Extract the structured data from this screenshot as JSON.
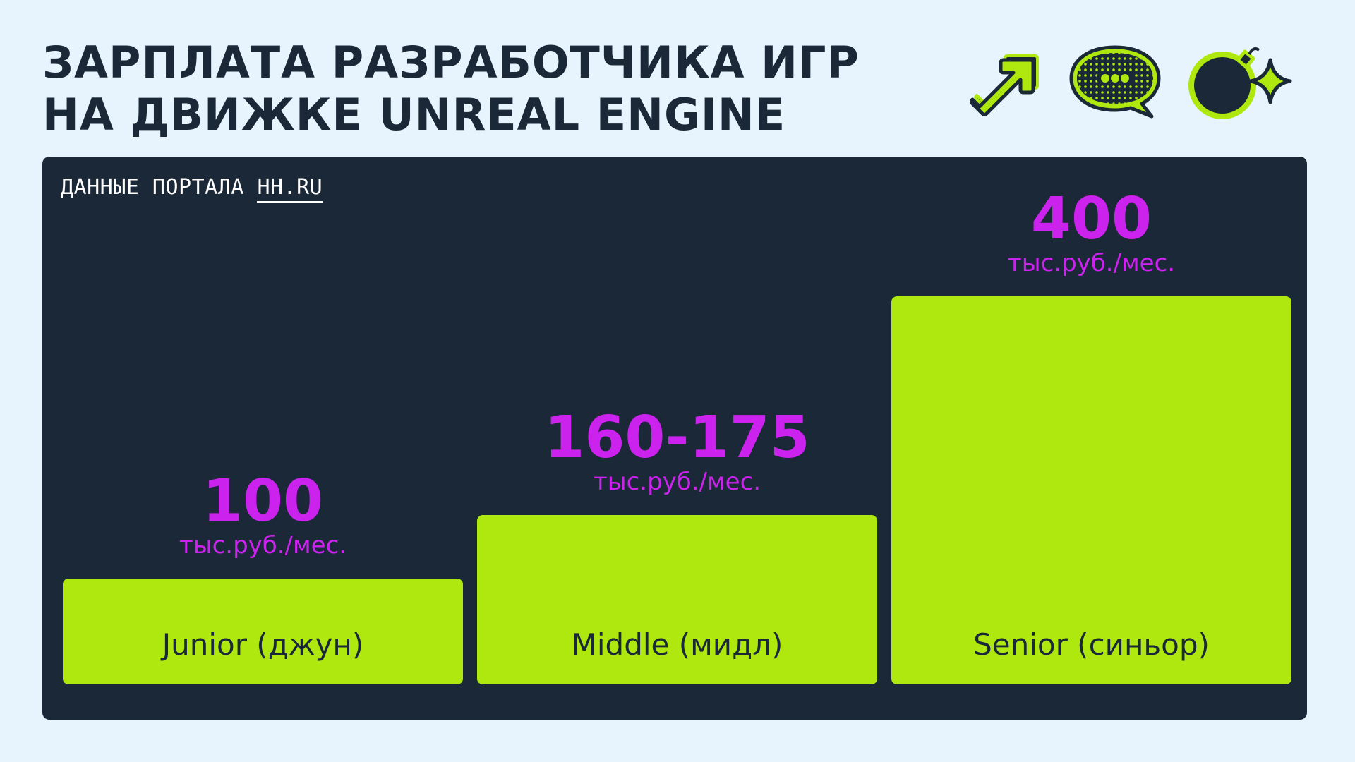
{
  "title": {
    "line1": "ЗАРПЛАТА РАЗРАБОТЧИКА ИГР",
    "line2": "НА ДВИЖКЕ UNREAL ENGINE"
  },
  "source": {
    "prefix": "ДАННЫЕ ПОРТАЛА",
    "link": "HH.RU"
  },
  "icons": [
    "arrow-icon",
    "speech-bubble-icon",
    "bomb-sparkle-icon"
  ],
  "colors": {
    "background": "#E8F4FD",
    "panel": "#1B2838",
    "bar": "#AEE80F",
    "value": "#CC22EE",
    "text_dark": "#1B2838"
  },
  "chart_data": {
    "type": "bar",
    "categories": [
      "Junior (джун)",
      "Middle (мидл)",
      "Senior (синьор)"
    ],
    "values": [
      100,
      167.5,
      400
    ],
    "value_labels": [
      "100",
      "160-175",
      "400"
    ],
    "unit_label": "тыс.руб./мес.",
    "title": "",
    "xlabel": "",
    "ylabel": "",
    "ylim": [
      0,
      400
    ],
    "grid": false,
    "legend": "none"
  }
}
